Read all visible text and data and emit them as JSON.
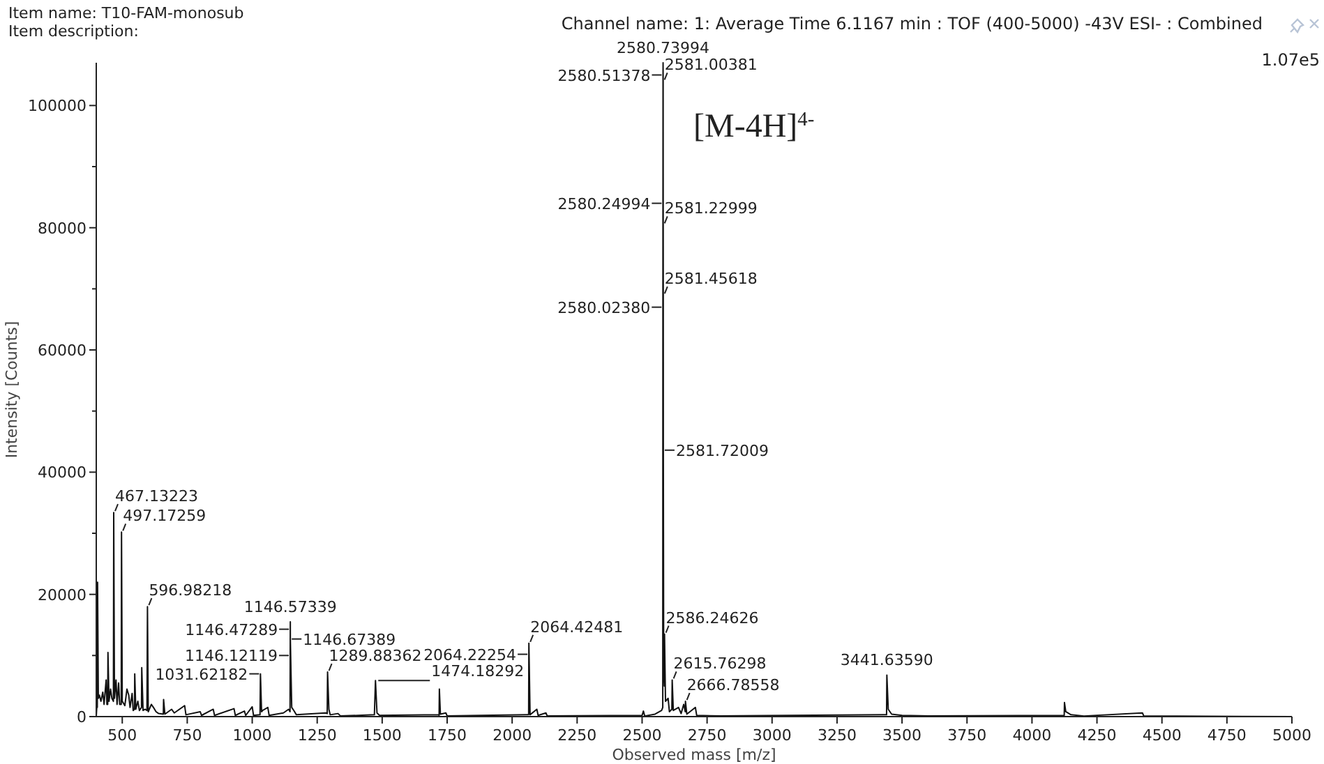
{
  "chart_data": {
    "type": "line",
    "title": "Item name: T10-FAM-monosub",
    "subtitle": "Item description:",
    "xlabel": "Observed mass [m/z]",
    "ylabel": "Intensity [Counts]",
    "xlim": [
      400,
      5000
    ],
    "ylim": [
      0,
      107000
    ],
    "xticks": [
      500,
      750,
      1000,
      1250,
      1500,
      1750,
      2000,
      2250,
      2500,
      2750,
      3000,
      3250,
      3500,
      3750,
      4000,
      4250,
      4500,
      4750,
      5000
    ],
    "yticks": [
      0,
      {
        "value": 10000,
        "label": null
      },
      20000,
      {
        "value": 30000,
        "label": null
      },
      40000,
      {
        "value": 50000,
        "label": null
      },
      60000,
      {
        "value": 70000,
        "label": null
      },
      80000,
      {
        "value": 90000,
        "label": null
      },
      100000
    ],
    "color": "#111111",
    "x": [
      400,
      402,
      404,
      405,
      408,
      412,
      418,
      425,
      430,
      438,
      441,
      444,
      445,
      449,
      455,
      460,
      466,
      467.13,
      470,
      476,
      480,
      486,
      490,
      496,
      497.17,
      500,
      510,
      518,
      525,
      530,
      538,
      542,
      547,
      548,
      552,
      560,
      566,
      574,
      575,
      580,
      588,
      595,
      596.98,
      600,
      612,
      620,
      630,
      640,
      658,
      659,
      664,
      690,
      700,
      740,
      745,
      800,
      805,
      850,
      855,
      930,
      935,
      970,
      975,
      1000,
      1005,
      1030,
      1031.62,
      1036,
      1040,
      1060,
      1065,
      1120,
      1140,
      1145.5,
      1146.12,
      1146.47,
      1146.57,
      1146.67,
      1152,
      1160,
      1170,
      1283,
      1288.5,
      1289.88,
      1295,
      1300,
      1330,
      1340,
      1470,
      1474.18,
      1480,
      1490,
      1717,
      1719,
      1720,
      1724,
      1745,
      1750,
      2060,
      2063.5,
      2064.22,
      2064.42,
      2069,
      2095,
      2100,
      2130,
      2135,
      2500,
      2505,
      2510,
      2550,
      2575,
      2579.5,
      2580.02,
      2580.25,
      2580.51,
      2580.74,
      2581.0,
      2581.23,
      2581.46,
      2581.72,
      2583,
      2585.5,
      2586.25,
      2590,
      2600,
      2605,
      2614.5,
      2615.76,
      2620,
      2640,
      2650,
      2660,
      2666,
      2666.79,
      2672,
      2705,
      2710,
      2800,
      3435,
      3440.5,
      3441.64,
      3447,
      3460,
      3500,
      3600,
      4124,
      4125,
      4130,
      4150,
      4200,
      4425,
      4430,
      5000
    ],
    "values": [
      0,
      1500,
      1500,
      22000,
      3000,
      3500,
      2500,
      4000,
      2000,
      6000,
      2000,
      2000,
      10500,
      2500,
      4500,
      3000,
      2500,
      33400,
      3000,
      6000,
      2000,
      5500,
      2000,
      2000,
      30200,
      2500,
      1800,
      4500,
      3500,
      1500,
      3800,
      1000,
      1200,
      7000,
      1200,
      2500,
      1000,
      1500,
      8000,
      1000,
      1200,
      1000,
      18000,
      800,
      2000,
      1500,
      800,
      500,
      400,
      2800,
      400,
      1200,
      600,
      1800,
      300,
      800,
      200,
      1200,
      200,
      1300,
      200,
      900,
      200,
      1600,
      200,
      300,
      7000,
      800,
      1000,
      1500,
      200,
      600,
      1200,
      800,
      10000,
      14300,
      15500,
      12700,
      1500,
      1000,
      300,
      600,
      500,
      7300,
      1200,
      300,
      500,
      100,
      300,
      5900,
      600,
      200,
      300,
      200,
      4500,
      400,
      600,
      100,
      300,
      300,
      10200,
      12000,
      300,
      1200,
      200,
      600,
      100,
      200,
      900,
      100,
      400,
      1000,
      1500,
      67000,
      84000,
      105000,
      107000,
      104000,
      80500,
      69000,
      43600,
      8000,
      5000,
      13500,
      2500,
      3000,
      800,
      1200,
      6000,
      1000,
      1500,
      500,
      2000,
      800,
      2500,
      400,
      1500,
      200,
      100,
      300,
      300,
      6800,
      1200,
      400,
      200,
      100,
      200,
      2300,
      800,
      300,
      100,
      600,
      100,
      0
    ],
    "annotations": [
      "Channel name: 1: Average Time 6.1167 min : TOF (400-5000) -43V ESI- : Combined",
      "1.07e5",
      "[M-4H]$^{4-}$",
      {
        "text": "2580.73994",
        "x": 2580.74,
        "y": 107000
      },
      {
        "text": "2580.51378",
        "x": 2580.51,
        "y": 105000
      },
      {
        "text": "2581.00381",
        "x": 2581.0,
        "y": 104000
      },
      {
        "text": "2580.24994",
        "x": 2580.25,
        "y": 84000
      },
      {
        "text": "2581.22999",
        "x": 2581.23,
        "y": 80500
      },
      {
        "text": "2581.45618",
        "x": 2581.46,
        "y": 69000
      },
      {
        "text": "2580.02380",
        "x": 2580.02,
        "y": 67000
      },
      {
        "text": "2581.72009",
        "x": 2581.72,
        "y": 43600
      },
      {
        "text": "467.13223",
        "x": 467.13,
        "y": 33400
      },
      {
        "text": "497.17259",
        "x": 497.17,
        "y": 30200
      },
      {
        "text": "596.98218",
        "x": 596.98,
        "y": 18000
      },
      {
        "text": "1146.57339",
        "x": 1146.57,
        "y": 15500
      },
      {
        "text": "1146.47289",
        "x": 1146.47,
        "y": 14300
      },
      {
        "text": "1146.67389",
        "x": 1146.67,
        "y": 12700
      },
      {
        "text": "1146.12119",
        "x": 1146.12,
        "y": 10000
      },
      {
        "text": "1031.62182",
        "x": 1031.62,
        "y": 7000
      },
      {
        "text": "1289.88362",
        "x": 1289.88,
        "y": 7300
      },
      {
        "text": "1474.18292",
        "x": 1474.18,
        "y": 5900
      },
      {
        "text": "2064.42481",
        "x": 2064.42,
        "y": 12000
      },
      {
        "text": "2064.22254",
        "x": 2064.22,
        "y": 10200
      },
      {
        "text": "2586.24626",
        "x": 2586.25,
        "y": 13500
      },
      {
        "text": "2615.76298",
        "x": 2615.76,
        "y": 6000
      },
      {
        "text": "2666.78558",
        "x": 2666.79,
        "y": 2500
      },
      {
        "text": "3441.63590",
        "x": 3441.64,
        "y": 6800
      }
    ]
  }
}
